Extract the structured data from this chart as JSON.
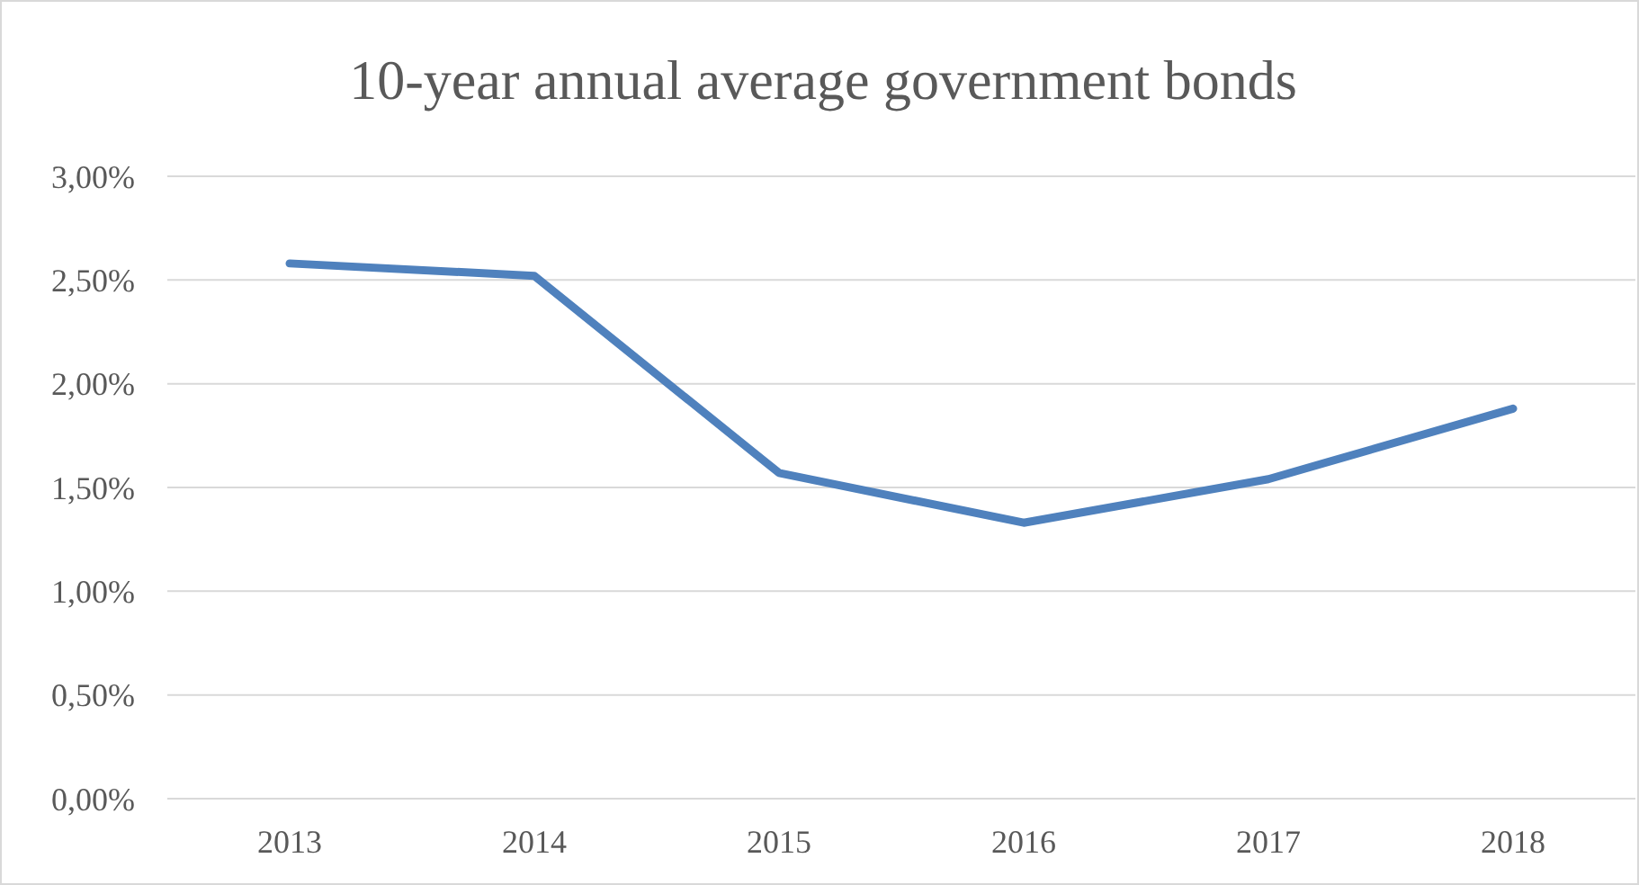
{
  "chart_data": {
    "type": "line",
    "title": "10-year annual average government bonds",
    "categories": [
      "2013",
      "2014",
      "2015",
      "2016",
      "2017",
      "2018"
    ],
    "series": [
      {
        "color": "#4f81bd",
        "values": [
          2.58,
          2.52,
          1.57,
          1.33,
          1.54,
          1.88
        ]
      }
    ],
    "ylim": [
      0,
      3
    ],
    "yticks": [
      {
        "value": 0,
        "label": "0,00%"
      },
      {
        "value": 0.5,
        "label": "0,50%"
      },
      {
        "value": 1,
        "label": "1,00%"
      },
      {
        "value": 1.5,
        "label": "1,50%"
      },
      {
        "value": 2,
        "label": "2,00%"
      },
      {
        "value": 2.5,
        "label": "2,50%"
      },
      {
        "value": 3,
        "label": "3,00%"
      }
    ],
    "grid": "y",
    "marker": "none",
    "line_style": "solid"
  }
}
